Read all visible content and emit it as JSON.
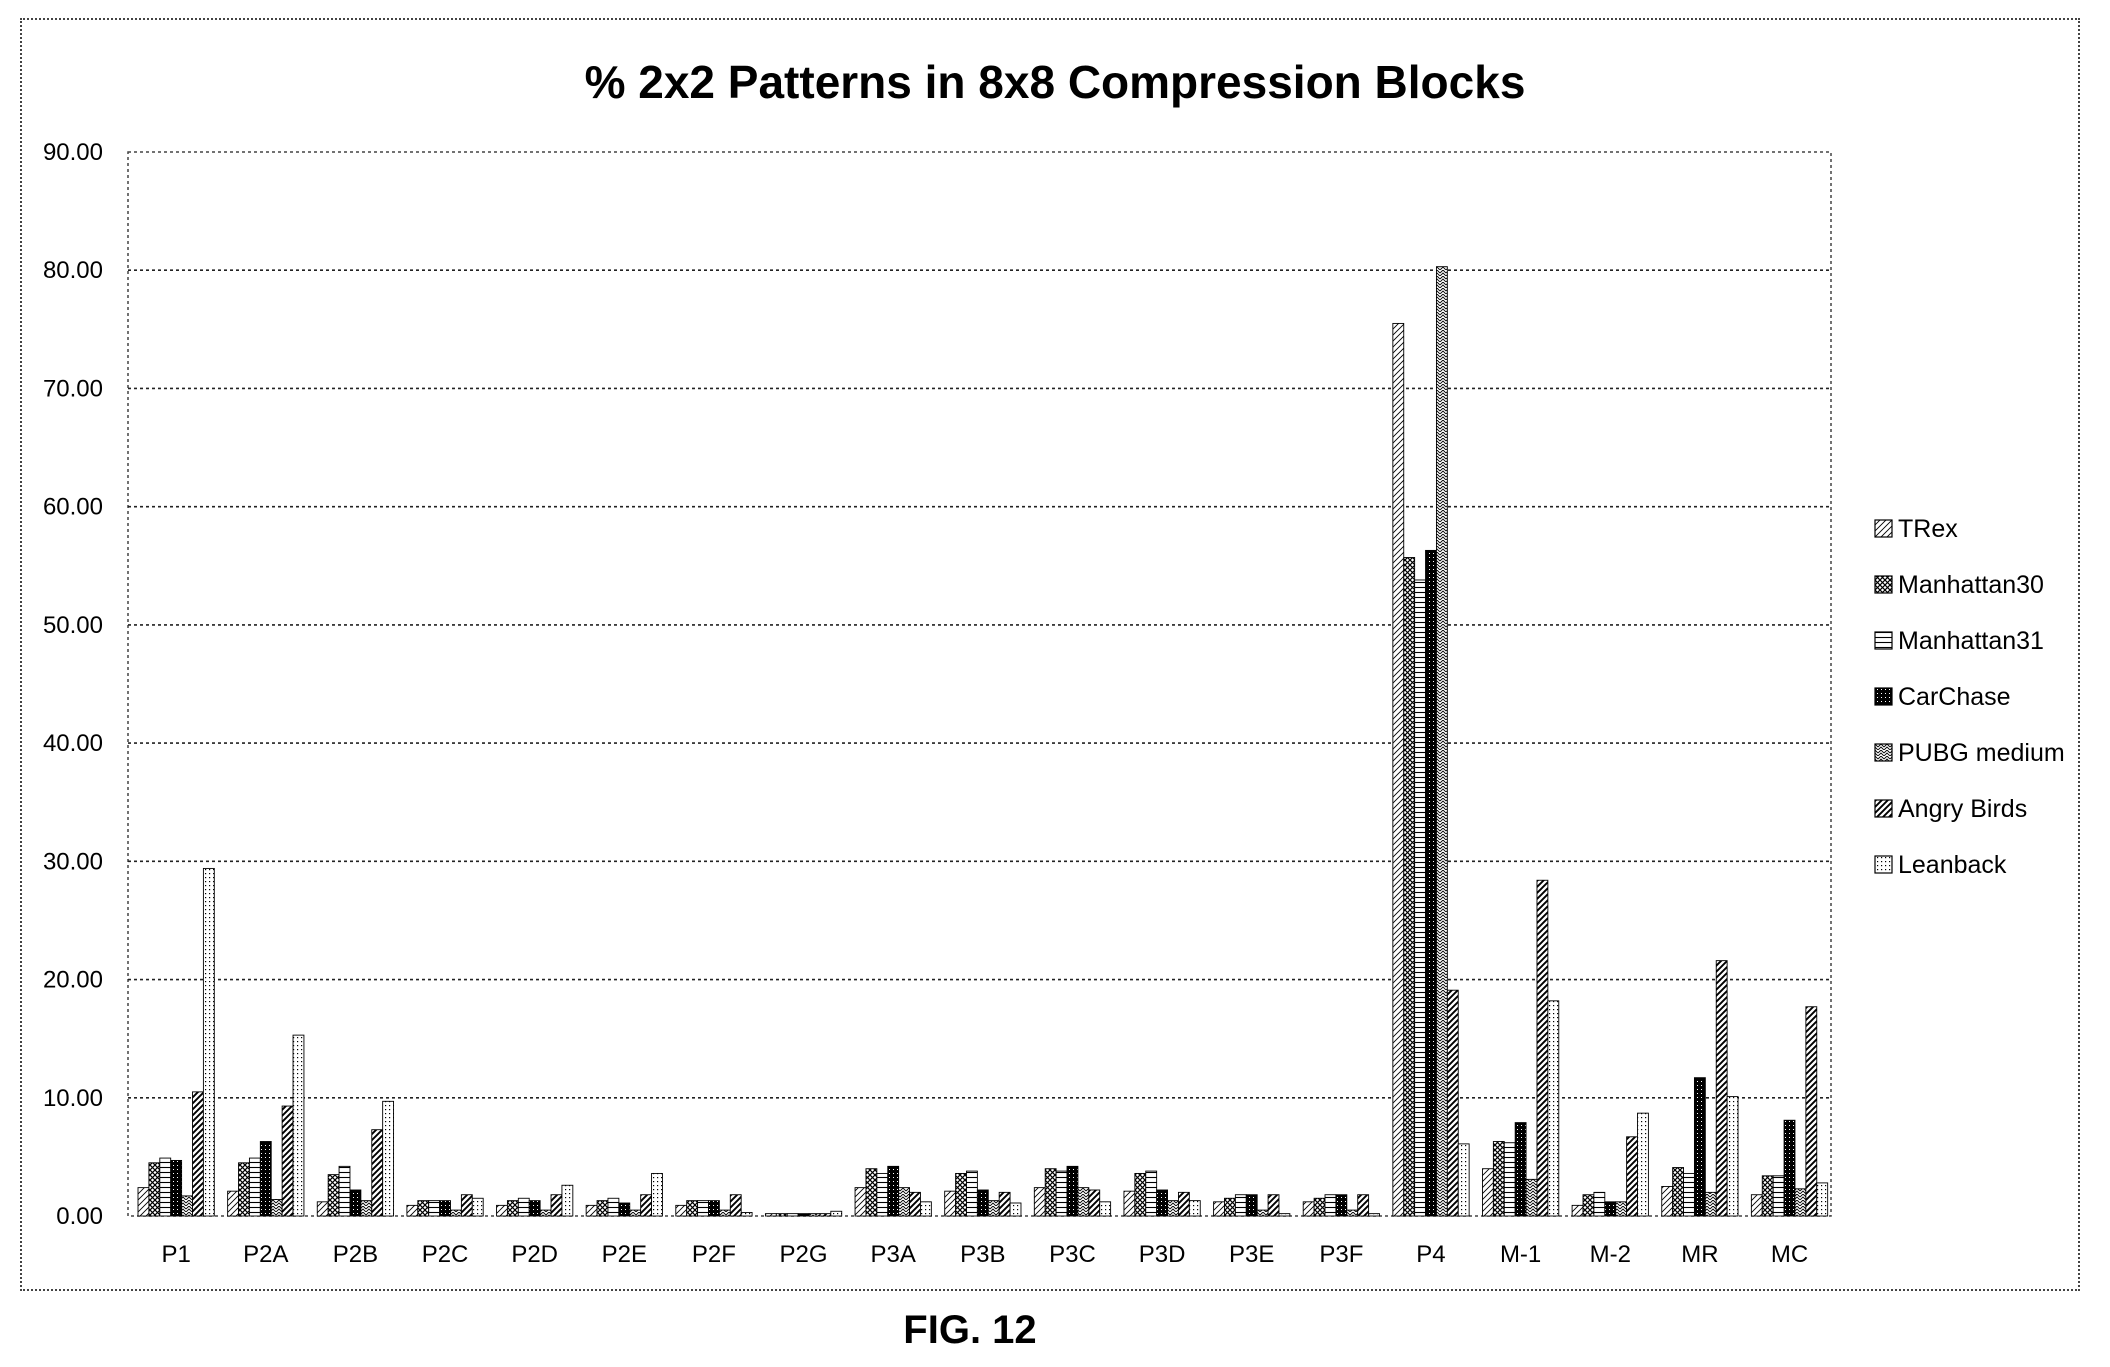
{
  "figure_label": "FIG. 12",
  "chart_data": {
    "type": "bar",
    "title": "% 2x2 Patterns in 8x8 Compression Blocks",
    "xlabel": "",
    "ylabel": "",
    "ylim": [
      0,
      90
    ],
    "yticks": [
      "0.00",
      "10.00",
      "20.00",
      "30.00",
      "40.00",
      "50.00",
      "60.00",
      "70.00",
      "80.00",
      "90.00"
    ],
    "grid": "horizontal dotted",
    "legend_position": "right",
    "categories": [
      "P1",
      "P2A",
      "P2B",
      "P2C",
      "P2D",
      "P2E",
      "P2F",
      "P2G",
      "P3A",
      "P3B",
      "P3C",
      "P3D",
      "P3E",
      "P3F",
      "P4",
      "M-1",
      "M-2",
      "MR",
      "MC"
    ],
    "series": [
      {
        "name": "TRex",
        "pattern": "diag-light",
        "values": [
          2.4,
          2.1,
          1.2,
          0.9,
          0.9,
          0.9,
          0.9,
          0.2,
          2.4,
          2.1,
          2.4,
          2.1,
          1.2,
          1.2,
          75.5,
          4.0,
          0.9,
          2.5,
          1.8
        ]
      },
      {
        "name": "Manhattan30",
        "pattern": "crosshatch",
        "values": [
          4.5,
          4.5,
          3.5,
          1.3,
          1.3,
          1.3,
          1.3,
          0.2,
          4.0,
          3.6,
          4.0,
          3.6,
          1.5,
          1.5,
          55.7,
          6.3,
          1.8,
          4.1,
          3.4
        ]
      },
      {
        "name": "Manhattan31",
        "pattern": "horizontal",
        "values": [
          4.9,
          4.9,
          4.2,
          1.3,
          1.5,
          1.5,
          1.3,
          0.2,
          3.6,
          3.8,
          3.8,
          3.8,
          1.8,
          1.8,
          53.8,
          6.2,
          2.0,
          3.6,
          3.4
        ]
      },
      {
        "name": "CarChase",
        "pattern": "dark-dots",
        "values": [
          4.7,
          6.3,
          2.2,
          1.3,
          1.3,
          1.1,
          1.3,
          0.2,
          4.2,
          2.2,
          4.2,
          2.2,
          1.8,
          1.8,
          56.3,
          7.9,
          1.2,
          11.7,
          8.1
        ]
      },
      {
        "name": "PUBG medium",
        "pattern": "zigzag",
        "values": [
          1.7,
          1.4,
          1.3,
          0.5,
          0.5,
          0.5,
          0.5,
          0.2,
          2.4,
          1.3,
          2.4,
          1.3,
          0.5,
          0.5,
          80.3,
          3.1,
          1.2,
          2.0,
          2.3
        ]
      },
      {
        "name": "Angry Birds",
        "pattern": "diag-bold",
        "values": [
          10.5,
          9.3,
          7.3,
          1.8,
          1.8,
          1.8,
          1.8,
          0.2,
          2.0,
          2.0,
          2.2,
          2.0,
          1.8,
          1.8,
          19.1,
          28.4,
          6.7,
          21.6,
          17.7
        ]
      },
      {
        "name": "Leanback",
        "pattern": "light-dots",
        "values": [
          29.4,
          15.3,
          9.7,
          1.5,
          2.6,
          3.6,
          0.3,
          0.4,
          1.2,
          1.1,
          1.2,
          1.3,
          0.2,
          0.2,
          6.1,
          18.2,
          8.7,
          10.1,
          2.8
        ]
      }
    ]
  }
}
